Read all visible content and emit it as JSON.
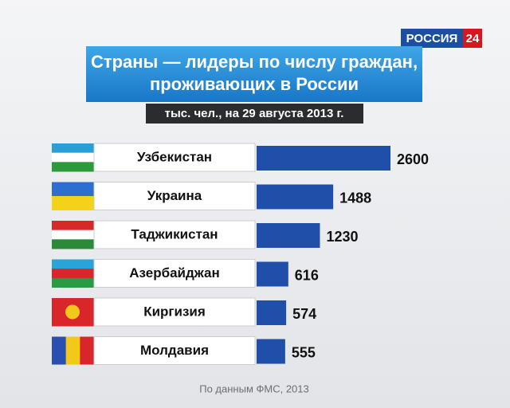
{
  "chart_data": {
    "type": "bar",
    "orientation": "horizontal",
    "logo": [
      "РОССИЯ",
      "24"
    ],
    "title": [
      "Страны — лидеры по числу граждан,",
      "проживающих в России"
    ],
    "subtitle": "тыс. чел., на 29 августа 2013 г.",
    "categories": [
      "Узбекистан",
      "Украина",
      "Таджикистан",
      "Азербайджан",
      "Киргизия",
      "Молдавия"
    ],
    "values": [
      2600,
      1488,
      1230,
      616,
      574,
      555
    ],
    "color": "#1f4fa8",
    "source": "По данным ФМС, 2013"
  }
}
